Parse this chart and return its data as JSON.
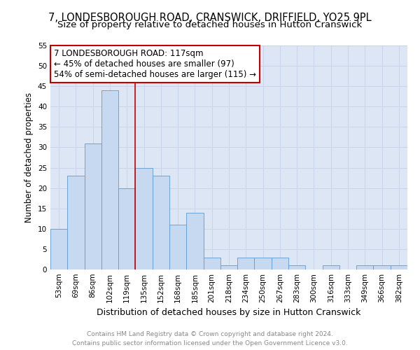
{
  "title": "7, LONDESBOROUGH ROAD, CRANSWICK, DRIFFIELD, YO25 9PL",
  "subtitle": "Size of property relative to detached houses in Hutton Cranswick",
  "xlabel": "Distribution of detached houses by size in Hutton Cranswick",
  "ylabel": "Number of detached properties",
  "categories": [
    "53sqm",
    "69sqm",
    "86sqm",
    "102sqm",
    "119sqm",
    "135sqm",
    "152sqm",
    "168sqm",
    "185sqm",
    "201sqm",
    "218sqm",
    "234sqm",
    "250sqm",
    "267sqm",
    "283sqm",
    "300sqm",
    "316sqm",
    "333sqm",
    "349sqm",
    "366sqm",
    "382sqm"
  ],
  "values": [
    10,
    23,
    31,
    44,
    20,
    25,
    23,
    11,
    14,
    3,
    1,
    3,
    3,
    3,
    1,
    0,
    1,
    0,
    1,
    1,
    1
  ],
  "bar_color": "#c6d9f0",
  "bar_edge_color": "#5b9bd5",
  "reference_line_color": "#c00000",
  "annotation_line1": "7 LONDESBOROUGH ROAD: 117sqm",
  "annotation_line2": "← 45% of detached houses are smaller (97)",
  "annotation_line3": "54% of semi-detached houses are larger (115) →",
  "annotation_box_color": "#c00000",
  "ylim": [
    0,
    55
  ],
  "yticks": [
    0,
    5,
    10,
    15,
    20,
    25,
    30,
    35,
    40,
    45,
    50,
    55
  ],
  "grid_color": "#c8d4e8",
  "background_color": "#dce6f5",
  "footer_line1": "Contains HM Land Registry data © Crown copyright and database right 2024.",
  "footer_line2": "Contains public sector information licensed under the Open Government Licence v3.0.",
  "title_fontsize": 10.5,
  "subtitle_fontsize": 9.5,
  "xlabel_fontsize": 9,
  "ylabel_fontsize": 8.5,
  "tick_fontsize": 7.5,
  "footer_fontsize": 6.5,
  "annotation_fontsize": 8.5
}
